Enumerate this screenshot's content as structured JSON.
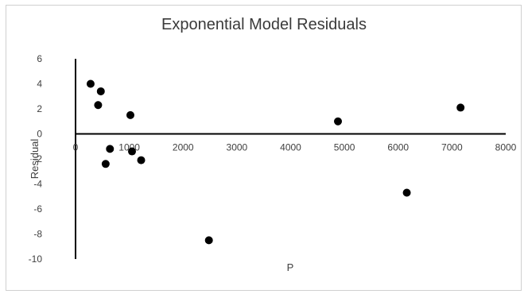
{
  "chart_data": {
    "type": "scatter",
    "title": "Exponential Model Residuals",
    "xlabel": "P",
    "ylabel": "Residual",
    "xlim": [
      0,
      8000
    ],
    "ylim": [
      -10,
      6
    ],
    "xticks": [
      0,
      1000,
      2000,
      3000,
      4000,
      5000,
      6000,
      7000,
      8000
    ],
    "yticks": [
      6,
      4,
      2,
      0,
      -2,
      -4,
      -6,
      -8,
      -10
    ],
    "grid": false,
    "legend": "none",
    "colors": {
      "marker": "#000000",
      "axis": "#000000",
      "text": "#404040"
    },
    "series": [
      {
        "points": [
          {
            "x": 280,
            "y": 4.0
          },
          {
            "x": 470,
            "y": 3.4
          },
          {
            "x": 420,
            "y": 2.3
          },
          {
            "x": 1020,
            "y": 1.5
          },
          {
            "x": 640,
            "y": -1.2
          },
          {
            "x": 1050,
            "y": -1.4
          },
          {
            "x": 560,
            "y": -2.4
          },
          {
            "x": 1220,
            "y": -2.1
          },
          {
            "x": 2480,
            "y": -8.5
          },
          {
            "x": 4880,
            "y": 1.0
          },
          {
            "x": 6160,
            "y": -4.7
          },
          {
            "x": 7160,
            "y": 2.1
          }
        ]
      }
    ]
  }
}
